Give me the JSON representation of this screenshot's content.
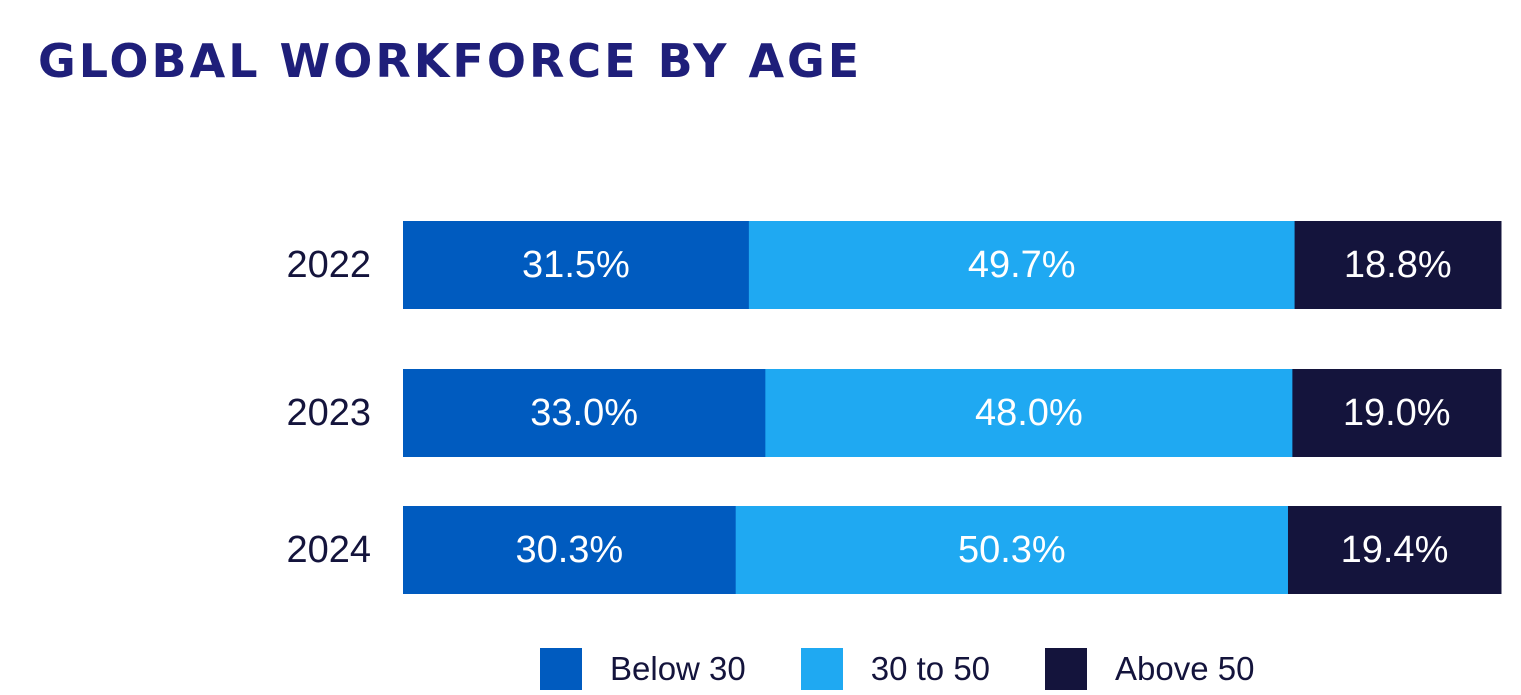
{
  "chart_data": {
    "type": "bar",
    "orientation": "horizontal",
    "stacked": true,
    "title": "GLOBAL WORKFORCE BY AGE",
    "categories": [
      "2022",
      "2023",
      "2024"
    ],
    "series": [
      {
        "name": "Below 30",
        "color": "#005bbf",
        "values": [
          31.5,
          33.0,
          30.3
        ],
        "labels": [
          "31.5%",
          "33.0%",
          "30.3%"
        ]
      },
      {
        "name": "30 to 50",
        "color": "#1fa9f2",
        "values": [
          49.7,
          48.0,
          50.3
        ],
        "labels": [
          "49.7%",
          "48.0%",
          "50.3%"
        ]
      },
      {
        "name": "Above 50",
        "color": "#14143c",
        "values": [
          18.8,
          19.0,
          19.4
        ],
        "labels": [
          "18.8%",
          "19.0%",
          "19.4%"
        ]
      }
    ],
    "xlim": [
      0,
      100
    ],
    "grid": false,
    "legend_position": "bottom"
  }
}
